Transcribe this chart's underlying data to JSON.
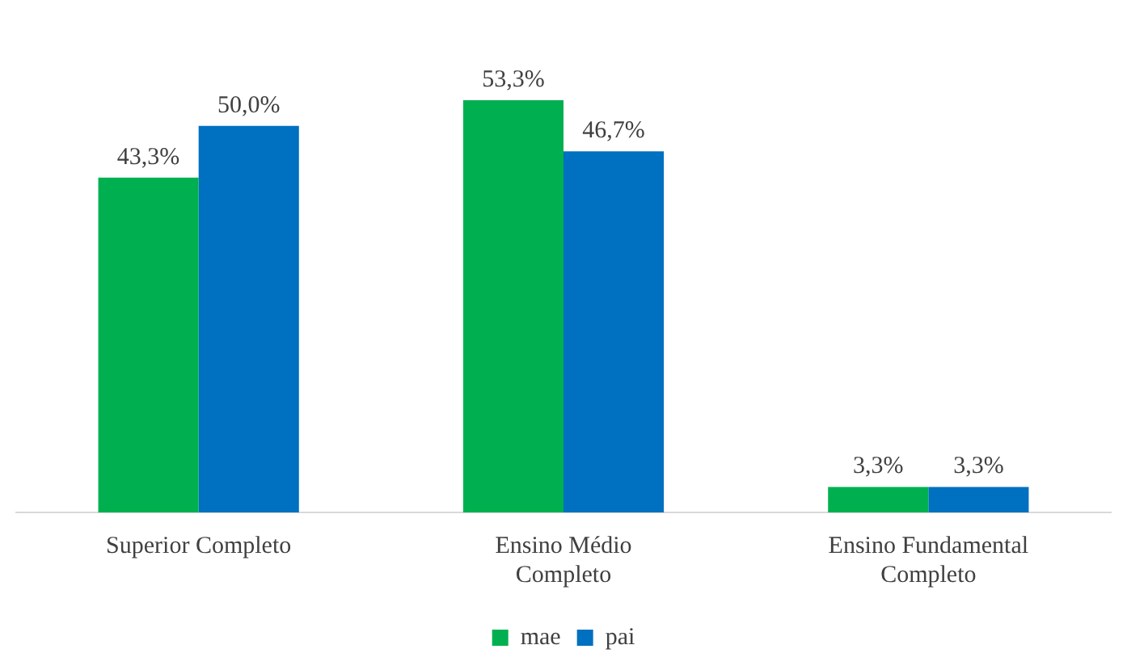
{
  "chart_data": {
    "type": "bar",
    "categories": [
      "Superior Completo",
      "Ensino Médio Completo",
      "Ensino Fundamental Completo"
    ],
    "series": [
      {
        "name": "mae",
        "color": "#00b050",
        "values": [
          43.3,
          53.3,
          3.3
        ],
        "value_labels": [
          "43,3%",
          "53,3%",
          "3,3%"
        ]
      },
      {
        "name": "pai",
        "color": "#0070c0",
        "values": [
          50.0,
          46.7,
          3.3
        ],
        "value_labels": [
          "50,0%",
          "46,7%",
          "3,3%"
        ]
      }
    ],
    "legend": "bottom",
    "grid": false,
    "tick_labels": "x"
  }
}
